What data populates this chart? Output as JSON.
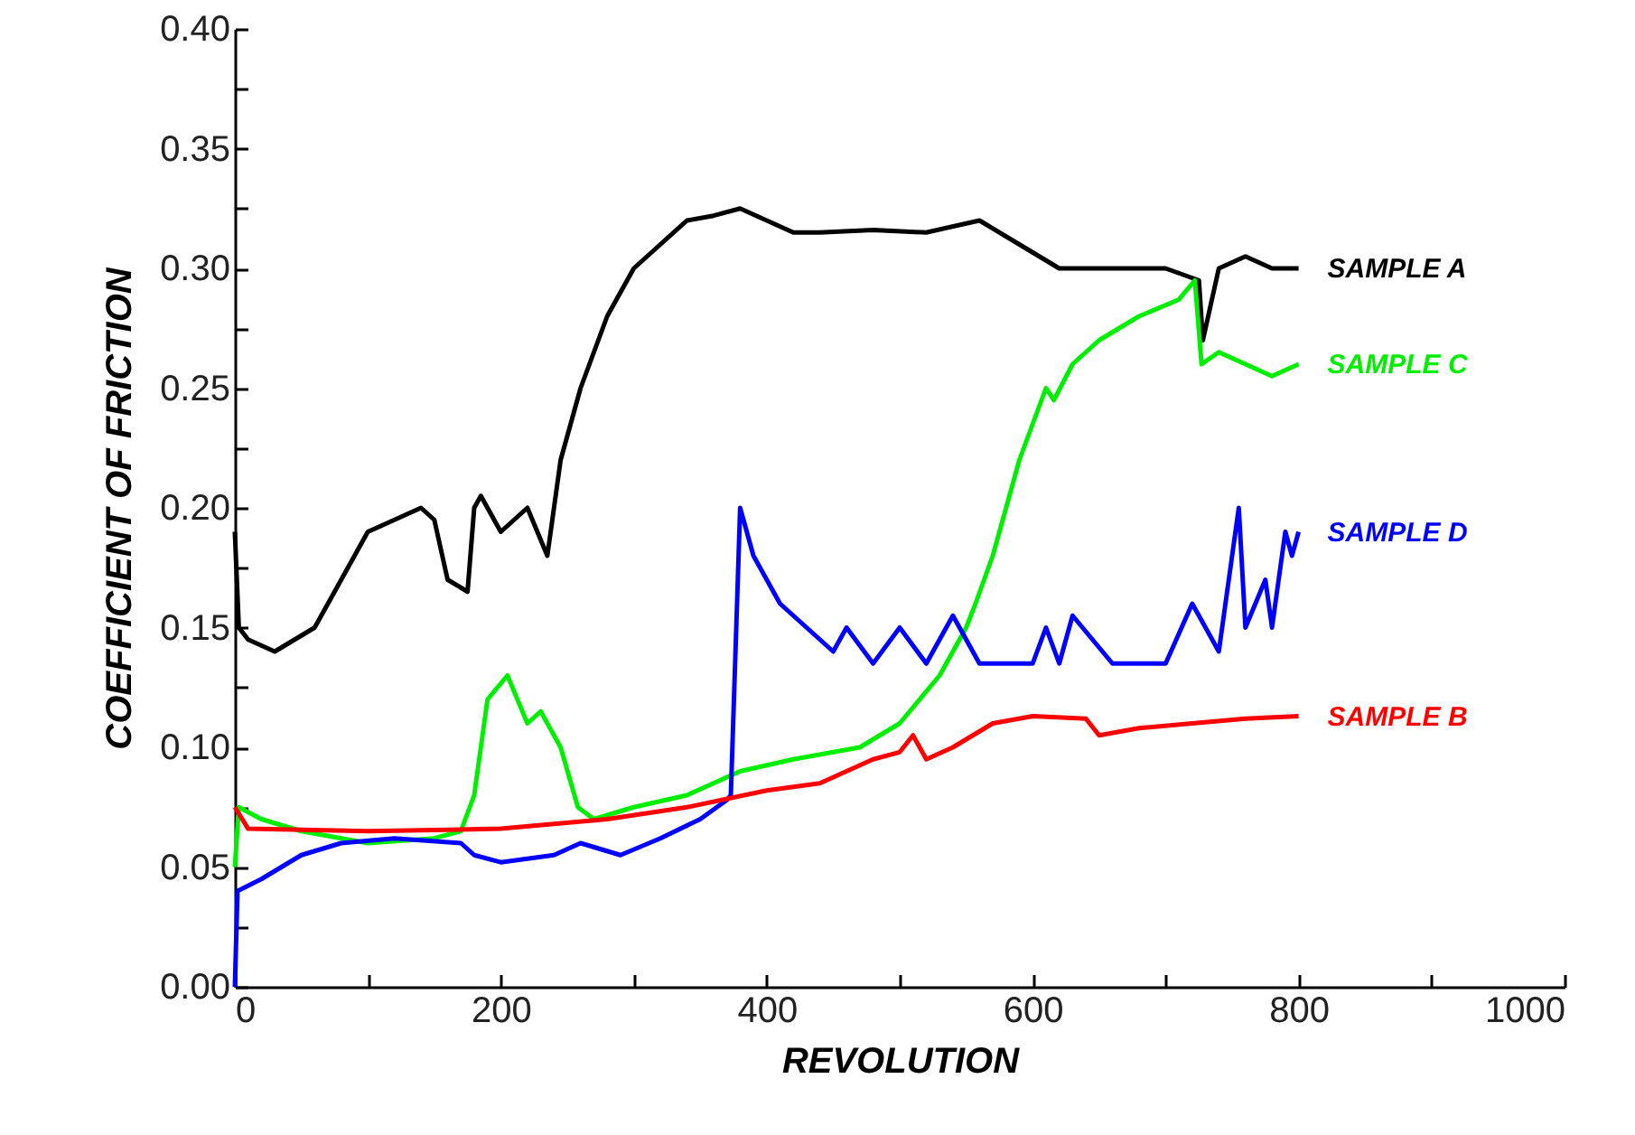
{
  "chart_data": {
    "type": "line",
    "xlabel": "REVOLUTION",
    "ylabel": "COEFFICIENT OF FRICTION",
    "xlim": [
      0,
      1000
    ],
    "xticks": [
      0,
      {
        "value": 100,
        "label": null
      },
      200,
      {
        "value": 300,
        "label": null
      },
      400,
      {
        "value": 500,
        "label": null
      },
      600,
      {
        "value": 700,
        "label": null
      },
      800,
      {
        "value": 900,
        "label": null
      },
      1000
    ],
    "ylim": [
      0,
      0.4
    ],
    "yticks": [
      {
        "value": 0,
        "label": "0.00"
      },
      {
        "value": 0.025,
        "label": null
      },
      {
        "value": 0.05,
        "label": "0.05"
      },
      {
        "value": 0.075,
        "label": null
      },
      {
        "value": 0.1,
        "label": "0.10"
      },
      {
        "value": 0.125,
        "label": null
      },
      {
        "value": 0.15,
        "label": "0.15"
      },
      {
        "value": 0.175,
        "label": null
      },
      {
        "value": 0.2,
        "label": "0.20"
      },
      {
        "value": 0.225,
        "label": null
      },
      {
        "value": 0.25,
        "label": "0.25"
      },
      {
        "value": 0.275,
        "label": null
      },
      {
        "value": 0.3,
        "label": "0.30"
      },
      {
        "value": 0.325,
        "label": null
      },
      {
        "value": 0.35,
        "label": "0.35"
      },
      {
        "value": 0.375,
        "label": null
      },
      {
        "value": 0.4,
        "label": "0.40"
      }
    ],
    "grid": false,
    "legend": false,
    "marker": "none",
    "line_style": "solid",
    "series": [
      {
        "name": "SAMPLE A",
        "color": "#000000",
        "x": [
          0,
          3,
          10,
          30,
          45,
          60,
          80,
          100,
          120,
          140,
          150,
          160,
          175,
          180,
          185,
          200,
          220,
          235,
          245,
          260,
          280,
          300,
          320,
          340,
          360,
          380,
          400,
          420,
          440,
          480,
          520,
          560,
          590,
          620,
          660,
          700,
          725,
          728,
          740,
          760,
          780,
          800
        ],
        "values": [
          0.19,
          0.15,
          0.145,
          0.14,
          0.145,
          0.15,
          0.17,
          0.19,
          0.195,
          0.2,
          0.195,
          0.17,
          0.165,
          0.2,
          0.205,
          0.19,
          0.2,
          0.18,
          0.22,
          0.25,
          0.28,
          0.3,
          0.31,
          0.32,
          0.322,
          0.325,
          0.32,
          0.315,
          0.315,
          0.316,
          0.315,
          0.32,
          0.31,
          0.3,
          0.3,
          0.3,
          0.295,
          0.27,
          0.3,
          0.305,
          0.3,
          0.3
        ]
      },
      {
        "name": "SAMPLE C",
        "color": "#00ee00",
        "x": [
          0,
          3,
          20,
          50,
          100,
          150,
          170,
          180,
          190,
          205,
          220,
          230,
          245,
          258,
          270,
          300,
          340,
          380,
          420,
          470,
          500,
          530,
          550,
          557,
          570,
          590,
          610,
          616,
          630,
          650,
          680,
          710,
          722,
          727,
          740,
          760,
          780,
          800
        ],
        "values": [
          0.05,
          0.075,
          0.07,
          0.065,
          0.06,
          0.062,
          0.065,
          0.08,
          0.12,
          0.13,
          0.11,
          0.115,
          0.1,
          0.075,
          0.07,
          0.075,
          0.08,
          0.09,
          0.095,
          0.1,
          0.11,
          0.13,
          0.15,
          0.16,
          0.18,
          0.22,
          0.25,
          0.245,
          0.26,
          0.27,
          0.28,
          0.287,
          0.295,
          0.26,
          0.265,
          0.26,
          0.255,
          0.26
        ]
      },
      {
        "name": "SAMPLE D",
        "color": "#0000ff",
        "x": [
          0,
          2,
          20,
          50,
          80,
          120,
          170,
          180,
          200,
          240,
          260,
          290,
          320,
          350,
          370,
          373,
          380,
          390,
          410,
          430,
          450,
          460,
          480,
          500,
          520,
          540,
          560,
          600,
          610,
          620,
          630,
          660,
          700,
          720,
          740,
          755,
          760,
          775,
          780,
          790,
          795,
          800
        ],
        "values": [
          0,
          0.04,
          0.045,
          0.055,
          0.06,
          0.062,
          0.06,
          0.055,
          0.052,
          0.055,
          0.06,
          0.055,
          0.062,
          0.07,
          0.078,
          0.08,
          0.2,
          0.18,
          0.16,
          0.15,
          0.14,
          0.15,
          0.135,
          0.15,
          0.135,
          0.155,
          0.135,
          0.135,
          0.15,
          0.135,
          0.155,
          0.135,
          0.135,
          0.16,
          0.14,
          0.2,
          0.15,
          0.17,
          0.15,
          0.19,
          0.18,
          0.19
        ]
      },
      {
        "name": "SAMPLE B",
        "color": "#ff0000",
        "x": [
          0,
          10,
          100,
          200,
          280,
          340,
          400,
          440,
          480,
          500,
          510,
          520,
          540,
          570,
          600,
          640,
          650,
          680,
          720,
          760,
          800
        ],
        "values": [
          0.075,
          0.066,
          0.065,
          0.066,
          0.07,
          0.075,
          0.082,
          0.085,
          0.095,
          0.098,
          0.105,
          0.095,
          0.1,
          0.11,
          0.113,
          0.112,
          0.105,
          0.108,
          0.11,
          0.112,
          0.113
        ]
      }
    ]
  }
}
